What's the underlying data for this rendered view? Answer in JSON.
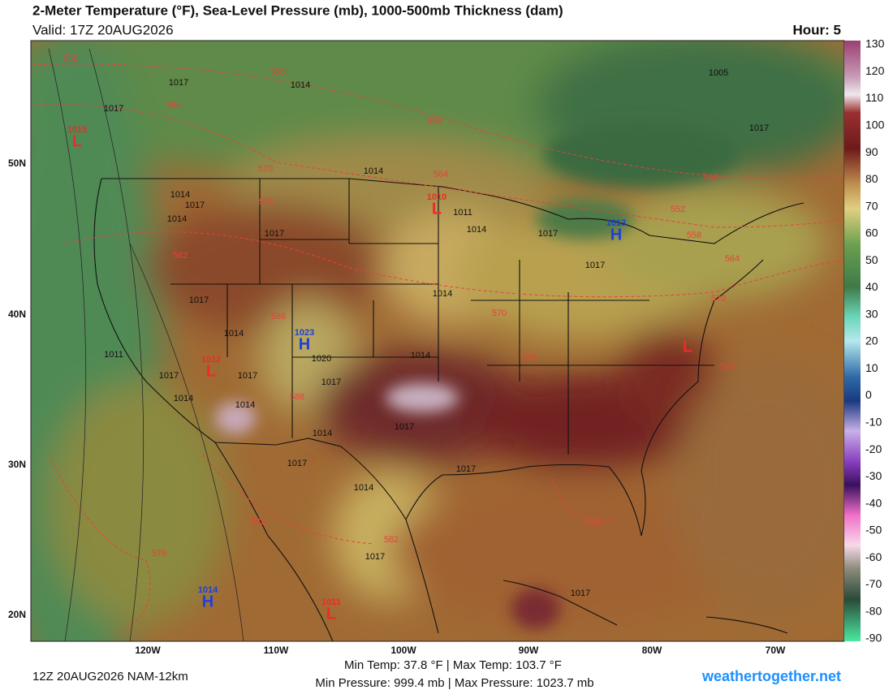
{
  "header": {
    "title": "2-Meter Temperature (°F), Sea-Level Pressure (mb), 1000-500mb Thickness (dam)",
    "valid": "Valid: 17Z 20AUG2026",
    "hour": "Hour: 5"
  },
  "colorbar": {
    "labels": [
      "130",
      "120",
      "110",
      "100",
      "90",
      "80",
      "70",
      "60",
      "50",
      "40",
      "30",
      "20",
      "10",
      "0",
      "-10",
      "-20",
      "-30",
      "-40",
      "-50",
      "-60",
      "-70",
      "-80",
      "-90"
    ]
  },
  "axes": {
    "latitudes": [
      "50N",
      "40N",
      "30N",
      "20N"
    ],
    "longitudes": [
      "120W",
      "110W",
      "100W",
      "90W",
      "80W",
      "70W"
    ]
  },
  "pressure_centers": [
    {
      "letter": "L",
      "value": "1015"
    },
    {
      "letter": "L",
      "value": "1010"
    },
    {
      "letter": "H",
      "value": "1013"
    },
    {
      "letter": "H",
      "value": "1023"
    },
    {
      "letter": "L",
      "value": "1012"
    },
    {
      "letter": "H",
      "value": "1014"
    },
    {
      "letter": "L",
      "value": "1011"
    },
    {
      "letter": "L"
    }
  ],
  "isobar_labels": [
    "1017",
    "1014",
    "1017",
    "1014",
    "1014",
    "1017",
    "1014",
    "1011",
    "1014",
    "1017",
    "1017",
    "1017",
    "1014",
    "1017",
    "1014",
    "1017",
    "1020",
    "1017",
    "1014",
    "1017",
    "1014",
    "1014",
    "1017",
    "1014",
    "1017",
    "1017",
    "1017",
    "1017",
    "1011",
    "1014",
    "1005",
    "1017"
  ],
  "thickness_labels": [
    "558",
    "558",
    "564",
    "558",
    "570",
    "564",
    "576",
    "582",
    "552",
    "558",
    "564",
    "570",
    "576",
    "570",
    "588",
    "588",
    "576",
    "576",
    "582",
    "582",
    "576",
    "546"
  ],
  "footer": {
    "run": "12Z 20AUG2026 NAM-12km",
    "temps": "Min Temp:  37.8 °F | Max Temp: 103.7 °F",
    "pressures": "Min Pressure: 999.4 mb | Max Pressure: 1023.7 mb",
    "site": "weathertogether.net"
  }
}
